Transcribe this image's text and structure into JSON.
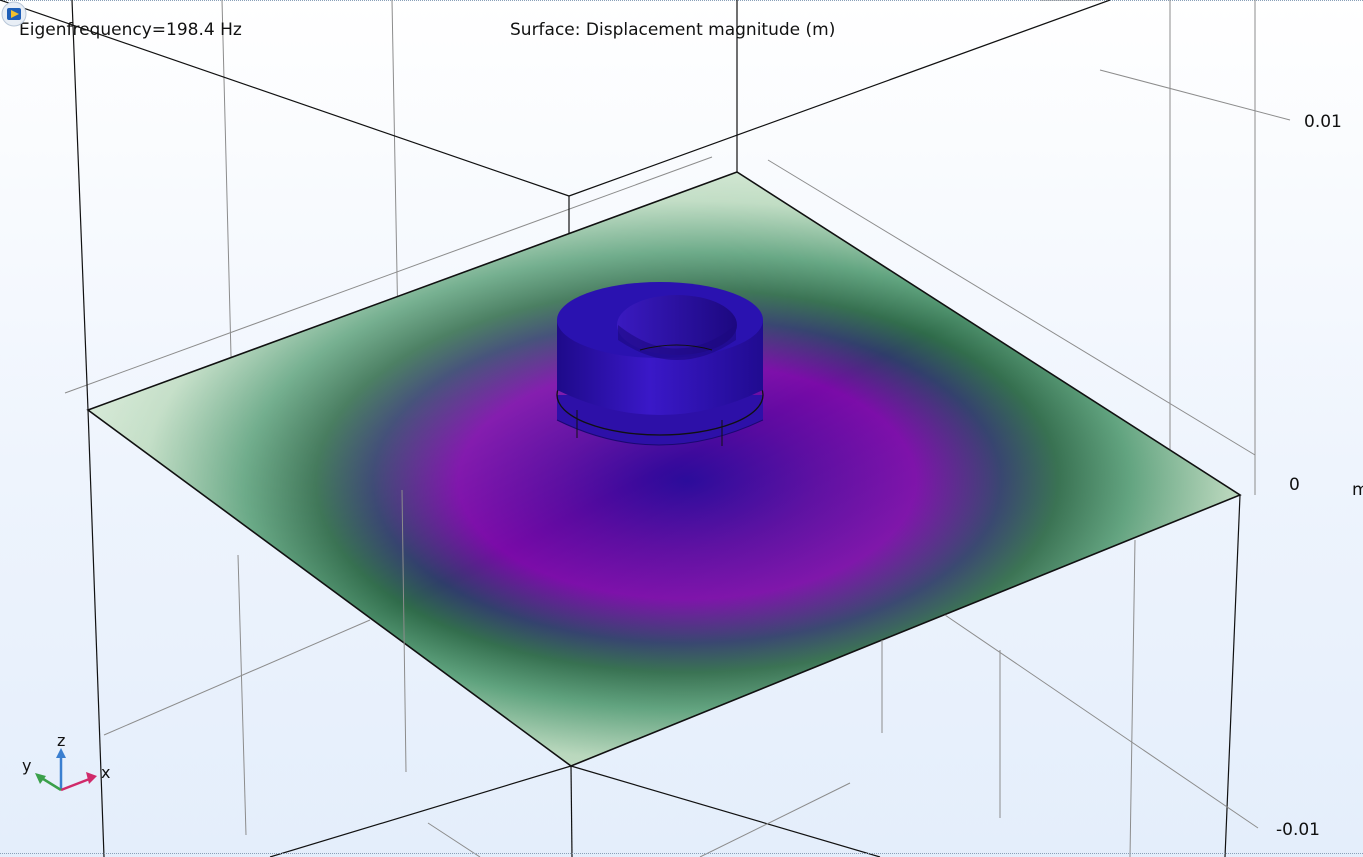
{
  "plot": {
    "eigenfrequency_label": "Eigenfrequency=198.4 Hz",
    "surface_label": "Surface: Displacement magnitude (m)"
  },
  "axis_ticks": {
    "top": "0.01",
    "middle": "0",
    "bottom": "-0.01",
    "unit": "m"
  },
  "triad": {
    "x": "x",
    "y": "y",
    "z": "z"
  },
  "colors": {
    "background_top": "#ffffff",
    "background_bottom": "#e4eefb",
    "plate_edge": "#e6f2e0",
    "ring_green": "#3d8a5e",
    "center_purple": "#6a0aa0",
    "cylinder_blue": "#2c10b8"
  },
  "icons": {
    "logo": "app-logo-icon"
  }
}
